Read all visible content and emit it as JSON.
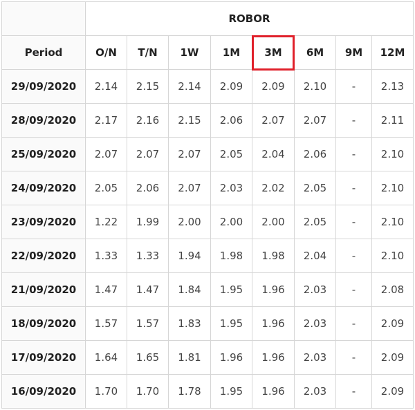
{
  "table": {
    "group_header": "ROBOR",
    "period_header": "Period",
    "columns": [
      "O/N",
      "T/N",
      "1W",
      "1M",
      "3M",
      "6M",
      "9M",
      "12M"
    ],
    "highlighted_column": "3M",
    "highlight_color": "#e0202a",
    "rows": [
      {
        "period": "29/09/2020",
        "values": [
          "2.14",
          "2.15",
          "2.14",
          "2.09",
          "2.09",
          "2.10",
          "-",
          "2.13"
        ]
      },
      {
        "period": "28/09/2020",
        "values": [
          "2.17",
          "2.16",
          "2.15",
          "2.06",
          "2.07",
          "2.07",
          "-",
          "2.11"
        ]
      },
      {
        "period": "25/09/2020",
        "values": [
          "2.07",
          "2.07",
          "2.07",
          "2.05",
          "2.04",
          "2.06",
          "-",
          "2.10"
        ]
      },
      {
        "period": "24/09/2020",
        "values": [
          "2.05",
          "2.06",
          "2.07",
          "2.03",
          "2.02",
          "2.05",
          "-",
          "2.10"
        ]
      },
      {
        "period": "23/09/2020",
        "values": [
          "1.22",
          "1.99",
          "2.00",
          "2.00",
          "2.00",
          "2.05",
          "-",
          "2.10"
        ]
      },
      {
        "period": "22/09/2020",
        "values": [
          "1.33",
          "1.33",
          "1.94",
          "1.98",
          "1.98",
          "2.04",
          "-",
          "2.10"
        ]
      },
      {
        "period": "21/09/2020",
        "values": [
          "1.47",
          "1.47",
          "1.84",
          "1.95",
          "1.96",
          "2.03",
          "-",
          "2.08"
        ]
      },
      {
        "period": "18/09/2020",
        "values": [
          "1.57",
          "1.57",
          "1.83",
          "1.95",
          "1.96",
          "2.03",
          "-",
          "2.09"
        ]
      },
      {
        "period": "17/09/2020",
        "values": [
          "1.64",
          "1.65",
          "1.81",
          "1.96",
          "1.96",
          "2.03",
          "-",
          "2.09"
        ]
      },
      {
        "period": "16/09/2020",
        "values": [
          "1.70",
          "1.70",
          "1.78",
          "1.95",
          "1.96",
          "2.03",
          "-",
          "2.09"
        ]
      }
    ]
  }
}
